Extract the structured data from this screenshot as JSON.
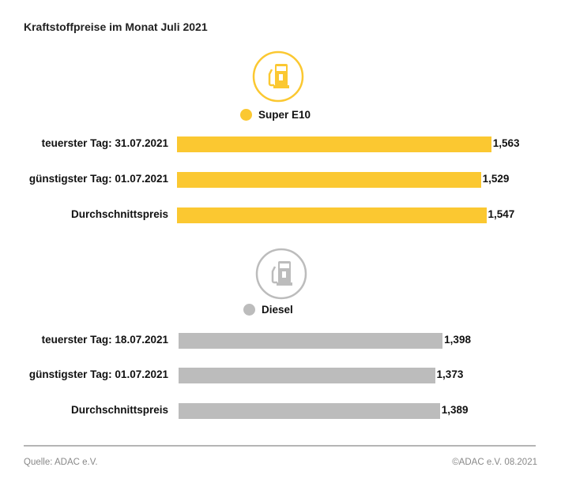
{
  "title": "Kraftstoffpreise im Monat Juli 2021",
  "chart_data": [
    {
      "type": "bar",
      "orientation": "horizontal",
      "series_name": "Super E10",
      "icon": "fuel-pump-icon",
      "color": "#fbc831",
      "categories": [
        "teuerster Tag: 31.07.2021",
        "günstigster Tag: 01.07.2021",
        "Durchschnittspreis"
      ],
      "values": [
        1.563,
        1.529,
        1.547
      ],
      "value_labels": [
        "1,563",
        "1,529",
        "1,547"
      ]
    },
    {
      "type": "bar",
      "orientation": "horizontal",
      "series_name": "Diesel",
      "icon": "fuel-pump-icon",
      "color": "#bcbcbc",
      "categories": [
        "teuerster Tag: 18.07.2021",
        "günstigster Tag: 01.07.2021",
        "Durchschnittspreis"
      ],
      "values": [
        1.398,
        1.373,
        1.389
      ],
      "value_labels": [
        "1,398",
        "1,373",
        "1,389"
      ]
    }
  ],
  "footer": {
    "source": "Quelle: ADAC e.V.",
    "copyright": "©ADAC e.V. 08.2021"
  }
}
